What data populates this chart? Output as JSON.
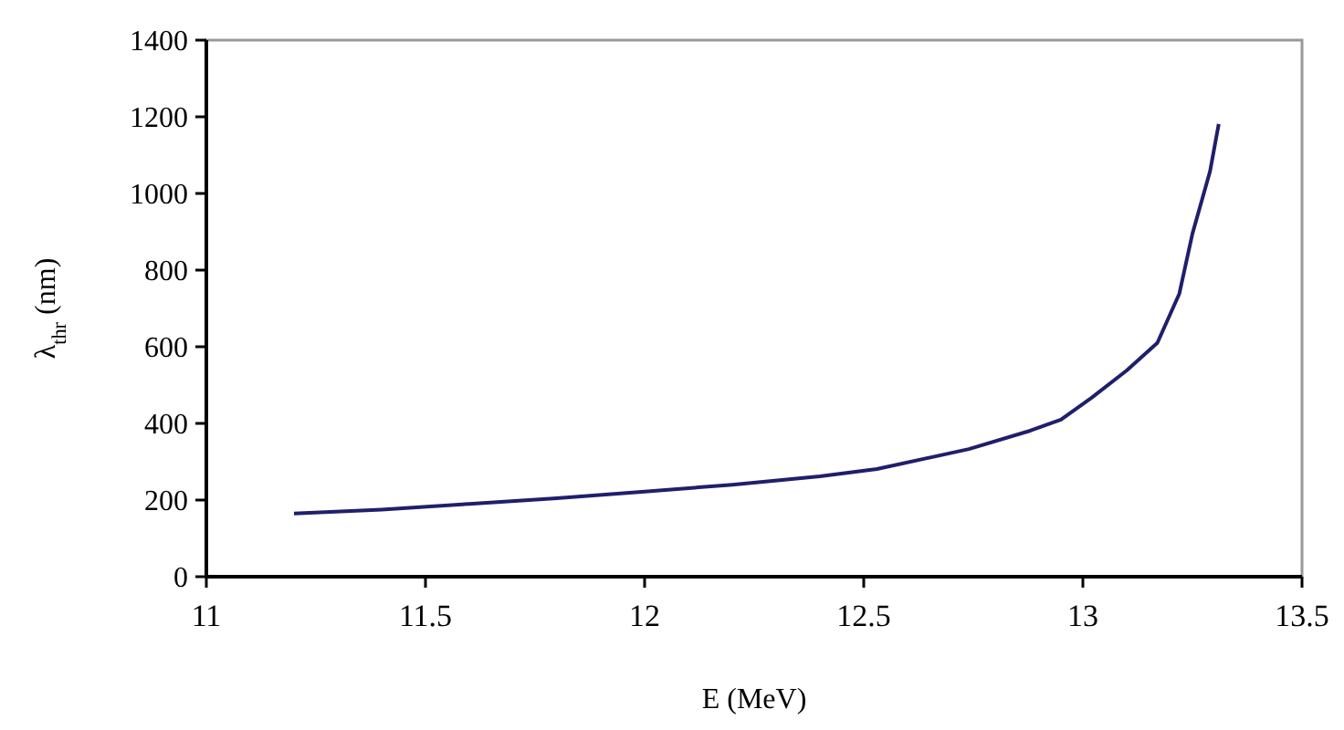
{
  "chart_data": {
    "type": "line",
    "xlabel": "E (MeV)",
    "ylabel": "λ$_{thr}$ (nm)",
    "x": [
      11.2,
      11.4,
      11.6,
      11.8,
      12.0,
      12.2,
      12.4,
      12.53,
      12.74,
      12.88,
      12.95,
      13.02,
      13.1,
      13.17,
      13.22,
      13.25,
      13.29,
      13.31
    ],
    "series": [
      {
        "color": "#1f1f6b",
        "values": [
          165,
          175,
          190,
          205,
          222,
          240,
          262,
          281,
          333,
          381,
          410,
          467,
          538,
          610,
          738,
          895,
          1057,
          1181
        ]
      }
    ],
    "xlim": [
      11,
      13.5
    ],
    "xticks": [
      11,
      11.5,
      12,
      12.5,
      13,
      13.5
    ],
    "ylim": [
      0,
      1400
    ],
    "yticks": [
      0,
      200,
      400,
      600,
      800,
      1000,
      1200,
      1400
    ],
    "grid": false,
    "marker": "none",
    "line_style": "solid"
  }
}
